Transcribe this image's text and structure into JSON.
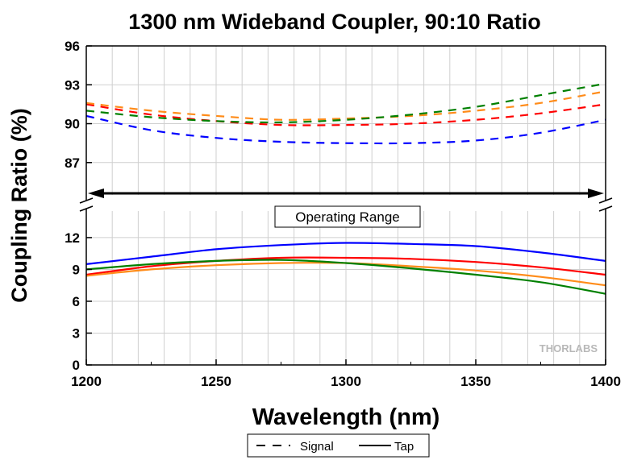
{
  "chart_data": {
    "type": "line",
    "title": "1300 nm Wideband Coupler, 90:10 Ratio",
    "xlabel": "Wavelength (nm)",
    "ylabel": "Coupling Ratio (%)",
    "xlim": [
      1200,
      1400
    ],
    "x_ticks": [
      "1200",
      "1250",
      "1300",
      "1350",
      "1400"
    ],
    "upper_panel": {
      "ylim": [
        84.5,
        96
      ],
      "y_ticks": [
        "87",
        "90",
        "93",
        "96"
      ]
    },
    "lower_panel": {
      "ylim": [
        0,
        14.5
      ],
      "y_ticks": [
        "0",
        "3",
        "6",
        "9",
        "12"
      ]
    },
    "annotation": "Operating Range",
    "operating_range": [
      1200,
      1400
    ],
    "legend": [
      {
        "label": "Signal",
        "style": "dashed"
      },
      {
        "label": "Tap",
        "style": "solid"
      }
    ],
    "watermark": "THORLABS",
    "x": [
      1200,
      1225,
      1250,
      1275,
      1300,
      1325,
      1350,
      1375,
      1400
    ],
    "series": [
      {
        "name": "Signal (blue)",
        "role": "Signal",
        "color": "#0000ff",
        "values": [
          90.6,
          89.5,
          88.9,
          88.6,
          88.5,
          88.5,
          88.7,
          89.3,
          90.3
        ]
      },
      {
        "name": "Signal (red)",
        "role": "Signal",
        "color": "#ff0000",
        "values": [
          91.5,
          90.7,
          90.2,
          89.9,
          89.9,
          90.0,
          90.3,
          90.8,
          91.5
        ]
      },
      {
        "name": "Signal (orange)",
        "role": "Signal",
        "color": "#ff8c1a",
        "values": [
          91.6,
          91.0,
          90.6,
          90.3,
          90.4,
          90.6,
          91.0,
          91.6,
          92.5
        ]
      },
      {
        "name": "Signal (green)",
        "role": "Signal",
        "color": "#008000",
        "values": [
          91.0,
          90.5,
          90.2,
          90.1,
          90.3,
          90.7,
          91.3,
          92.2,
          93.1
        ]
      },
      {
        "name": "Tap (blue)",
        "role": "Tap",
        "color": "#0000ff",
        "values": [
          9.5,
          10.2,
          10.9,
          11.3,
          11.5,
          11.4,
          11.2,
          10.6,
          9.8
        ]
      },
      {
        "name": "Tap (red)",
        "role": "Tap",
        "color": "#ff0000",
        "values": [
          8.5,
          9.3,
          9.8,
          10.1,
          10.1,
          10.0,
          9.7,
          9.2,
          8.5
        ]
      },
      {
        "name": "Tap (orange)",
        "role": "Tap",
        "color": "#ff8c1a",
        "values": [
          8.4,
          9.0,
          9.4,
          9.6,
          9.6,
          9.3,
          8.9,
          8.3,
          7.5
        ]
      },
      {
        "name": "Tap (green)",
        "role": "Tap",
        "color": "#008000",
        "values": [
          9.0,
          9.5,
          9.8,
          9.9,
          9.6,
          9.1,
          8.5,
          7.8,
          6.7
        ]
      }
    ]
  }
}
